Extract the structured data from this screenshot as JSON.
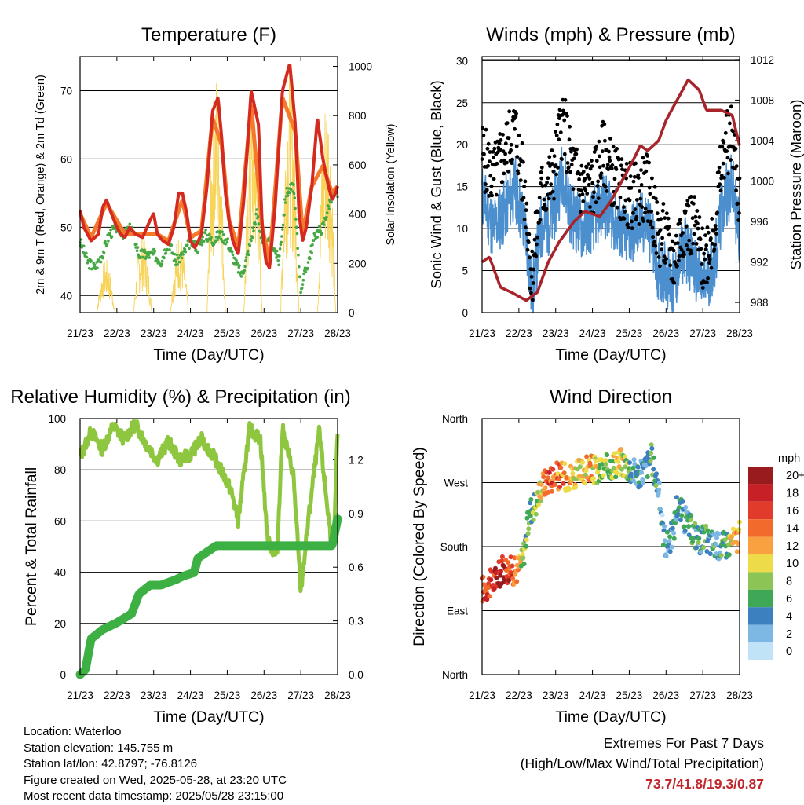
{
  "chart_data": [
    {
      "type": "line",
      "title": "Temperature (F)",
      "xlabel": "Time (Day/UTC)",
      "ylabel": "2m & 9m T (Red, Orange) & 2m Td (Green)",
      "y2label": "Solar Insolation (Yellow)",
      "x_ticks": [
        "21/23",
        "22/23",
        "23/23",
        "24/23",
        "25/23",
        "26/23",
        "27/23",
        "28/23"
      ],
      "ylim": [
        37.5,
        75
      ],
      "y_ticks": [
        40,
        50,
        60,
        70
      ],
      "y2lim": [
        0,
        1040
      ],
      "y2_ticks": [
        0,
        200,
        400,
        600,
        800,
        1000
      ],
      "series": [
        {
          "color": "#d42a20",
          "days": [
            0,
            0.1,
            0.3,
            0.5,
            0.62,
            0.72,
            0.85,
            1.0,
            1.1,
            1.22,
            1.35,
            1.5,
            1.7,
            1.9,
            2.0,
            2.1,
            2.25,
            2.4,
            2.55,
            2.68,
            2.78,
            2.9,
            3.0,
            3.12,
            3.3,
            3.45,
            3.6,
            3.75,
            3.85,
            3.95,
            4.05,
            4.15,
            4.3,
            4.45,
            4.65,
            4.85,
            4.95,
            5.05,
            5.15,
            5.3,
            5.5,
            5.7,
            5.85,
            5.95,
            6.05,
            6.15,
            6.3,
            6.45,
            6.6,
            6.75,
            6.85,
            6.95,
            7.0
          ],
          "values": [
            52.5,
            50,
            48,
            49,
            53,
            54,
            52,
            50,
            49,
            48.5,
            50,
            49,
            48.5,
            51,
            52,
            49,
            48,
            47.5,
            50,
            55,
            55,
            52,
            48,
            47,
            49,
            56,
            67,
            69,
            63,
            55,
            51,
            48,
            46,
            54,
            70,
            65,
            50,
            45,
            44,
            53,
            70,
            74,
            65,
            52,
            48,
            50,
            56,
            66,
            60,
            56,
            54,
            55,
            56
          ]
        },
        {
          "color": "#f4792a",
          "days": [
            0,
            0.3,
            0.72,
            1.22,
            1.7,
            2.1,
            2.4,
            2.78,
            3.0,
            3.3,
            3.6,
            3.85,
            4.05,
            4.3,
            4.65,
            4.95,
            5.15,
            5.5,
            5.85,
            6.05,
            6.3,
            6.6,
            6.85,
            7.0
          ],
          "values": [
            52,
            48.5,
            53.5,
            49,
            49,
            49,
            48,
            54,
            48.5,
            49.5,
            66,
            62,
            51,
            47,
            68,
            50,
            45,
            69,
            64,
            49,
            56,
            59,
            55,
            56
          ]
        },
        {
          "color": "#46a843",
          "days": [
            0,
            0.2,
            0.4,
            0.6,
            0.8,
            1.0,
            1.2,
            1.4,
            1.6,
            1.8,
            2.0,
            2.2,
            2.4,
            2.6,
            2.8,
            3.0,
            3.2,
            3.4,
            3.6,
            3.8,
            4.0,
            4.2,
            4.4,
            4.6,
            4.8,
            5.0,
            5.2,
            5.4,
            5.6,
            5.8,
            6.0,
            6.2,
            6.4,
            6.6,
            6.8,
            7.0
          ],
          "values": [
            48,
            45,
            44,
            46,
            49,
            50,
            49,
            50,
            46,
            46,
            46,
            45,
            48,
            45,
            46,
            48,
            47,
            49,
            48,
            49,
            48,
            45,
            43,
            47,
            52,
            47,
            48,
            45,
            55,
            56,
            41,
            45,
            49,
            50,
            54,
            55
          ]
        }
      ]
    },
    {
      "type": "line",
      "title": "Winds (mph) & Pressure (mb)",
      "xlabel": "Time (Day/UTC)",
      "ylabel": "Sonic Wind & Gust (Blue, Black)",
      "y2label": "Station Pressure (Maroon)",
      "x_ticks": [
        "21/23",
        "22/23",
        "23/23",
        "24/23",
        "25/23",
        "26/23",
        "27/23",
        "28/23"
      ],
      "ylim": [
        0,
        30.5
      ],
      "y_ticks": [
        0,
        5,
        10,
        15,
        20,
        25,
        30
      ],
      "y2lim": [
        987,
        1012.3
      ],
      "y2_ticks": [
        988,
        992,
        996,
        1000,
        1004,
        1008,
        1012
      ],
      "series": [
        {
          "name": "Sonic Wind",
          "color": "#4b8fcf",
          "days": [
            0,
            0.3,
            0.6,
            0.9,
            1.2,
            1.35,
            1.6,
            1.9,
            2.2,
            2.4,
            2.7,
            3.0,
            3.3,
            3.6,
            3.9,
            4.2,
            4.5,
            4.8,
            4.95,
            5.2,
            5.5,
            5.8,
            6.0,
            6.3,
            6.6,
            6.8,
            7.0
          ],
          "values": [
            14,
            10,
            12,
            15,
            9,
            2,
            10,
            11,
            17,
            12,
            10,
            11,
            13,
            11,
            9,
            10,
            11,
            5,
            5,
            3,
            8,
            5,
            3,
            6,
            14,
            15,
            9
          ]
        },
        {
          "name": "Gust",
          "color": "#000000",
          "days": [
            0,
            0.3,
            0.6,
            0.9,
            1.2,
            1.35,
            1.6,
            1.9,
            2.2,
            2.4,
            2.7,
            3.0,
            3.3,
            3.6,
            3.9,
            4.2,
            4.5,
            4.8,
            4.95,
            5.2,
            5.5,
            5.8,
            6.0,
            6.3,
            6.6,
            6.8,
            7.0
          ],
          "values": [
            19,
            16,
            19,
            22,
            13,
            4,
            14,
            16,
            23,
            18,
            15,
            15,
            19,
            16,
            14,
            14,
            15,
            9,
            9,
            6,
            11,
            10,
            6,
            10,
            20,
            21,
            13
          ]
        },
        {
          "name": "Station Pressure",
          "color": "#a6242a",
          "days": [
            0,
            0.2,
            0.5,
            0.8,
            1.2,
            1.5,
            1.8,
            2.1,
            2.5,
            2.8,
            3.2,
            3.5,
            3.8,
            4.1,
            4.3,
            4.5,
            4.8,
            5.0,
            5.3,
            5.6,
            5.9,
            6.1,
            6.3,
            6.5,
            6.8,
            7.0
          ],
          "values": [
            992,
            992.5,
            989.5,
            989,
            988.2,
            989,
            992,
            994,
            996,
            997,
            996.5,
            998,
            1000,
            1002,
            1003.5,
            1003,
            1004,
            1006,
            1008,
            1010,
            1009,
            1007,
            1007,
            1007,
            1006.5,
            1003.5
          ]
        }
      ]
    },
    {
      "type": "line",
      "title": "Relative Humidity (%) & Precipitation (in)",
      "xlabel": "Time (Day/UTC)",
      "ylabel": "Percent & Total Rainfall",
      "x_ticks": [
        "21/23",
        "22/23",
        "23/23",
        "24/23",
        "25/23",
        "26/23",
        "27/23",
        "28/23"
      ],
      "ylim": [
        0,
        100
      ],
      "y_ticks": [
        0,
        20,
        40,
        60,
        80,
        100
      ],
      "y2lim": [
        0,
        1.43
      ],
      "y2_ticks": [
        "0.0",
        "0.3",
        "0.6",
        "0.9",
        "1.2"
      ],
      "series": [
        {
          "name": "Relative Humidity",
          "color": "#8ec63f",
          "days": [
            0,
            0.3,
            0.6,
            0.9,
            1.2,
            1.5,
            1.8,
            2.1,
            2.4,
            2.7,
            3.0,
            3.3,
            3.6,
            3.9,
            4.1,
            4.3,
            4.6,
            4.9,
            5.1,
            5.35,
            5.5,
            5.8,
            6.0,
            6.2,
            6.5,
            6.8,
            6.9,
            7.0
          ],
          "values": [
            85,
            95,
            88,
            97,
            92,
            98,
            90,
            84,
            91,
            84,
            86,
            92,
            86,
            78,
            72,
            60,
            96,
            92,
            52,
            46,
            96,
            78,
            32,
            60,
            95,
            55,
            50,
            95
          ]
        },
        {
          "name": "Total Rainfall",
          "color": "#3cb043",
          "days": [
            0,
            0.15,
            0.3,
            0.6,
            1.0,
            1.4,
            1.6,
            1.9,
            2.2,
            2.6,
            2.8,
            3.1,
            3.2,
            3.7,
            4.0,
            5.0,
            6.0,
            6.85,
            7.0
          ],
          "values": [
            0.0,
            0.03,
            0.2,
            0.25,
            0.29,
            0.34,
            0.45,
            0.5,
            0.5,
            0.53,
            0.55,
            0.57,
            0.65,
            0.72,
            0.72,
            0.72,
            0.72,
            0.72,
            0.87
          ]
        }
      ]
    },
    {
      "type": "scatter",
      "title": "Wind Direction",
      "xlabel": "Time (Day/UTC)",
      "ylabel": "Direction (Colored By Speed)",
      "x_ticks": [
        "21/23",
        "22/23",
        "23/23",
        "24/23",
        "25/23",
        "26/23",
        "27/23",
        "28/23"
      ],
      "y_ticks": [
        "North",
        "West",
        "South",
        "East",
        "North"
      ],
      "ylim": [
        0,
        360
      ],
      "colorbar": {
        "title": "mph",
        "labels": [
          "20+",
          "18",
          "16",
          "14",
          "12",
          "10",
          "8",
          "6",
          "4",
          "2",
          "0"
        ],
        "colors": [
          "#991b1e",
          "#c72027",
          "#e03b2b",
          "#f26a2c",
          "#f9a041",
          "#eedb48",
          "#8dc456",
          "#3fa857",
          "#3d80c0",
          "#7db8e5",
          "#c0e3f7"
        ]
      },
      "series": [
        {
          "name": "Direction",
          "days": [
            0,
            0.3,
            0.6,
            0.9,
            1.1,
            1.3,
            1.5,
            1.6,
            1.8,
            2.0,
            2.3,
            2.6,
            2.9,
            3.2,
            3.5,
            3.8,
            4.0,
            4.3,
            4.6,
            4.8,
            4.9,
            5.0,
            5.2,
            5.3,
            5.6,
            5.9,
            6.1,
            6.4,
            6.7,
            6.9,
            7.0
          ],
          "values": [
            120,
            130,
            150,
            145,
            160,
            230,
            245,
            265,
            275,
            280,
            278,
            282,
            290,
            285,
            295,
            300,
            290,
            280,
            305,
            260,
            210,
            180,
            200,
            240,
            210,
            190,
            190,
            180,
            185,
            190,
            195
          ],
          "speeds": [
            15,
            17,
            18,
            14,
            8,
            6,
            8,
            10,
            16,
            14,
            12,
            10,
            12,
            8,
            9,
            10,
            6,
            3,
            6,
            4,
            3,
            3,
            5,
            3,
            4,
            5,
            6,
            4,
            8,
            12,
            9
          ]
        }
      ]
    }
  ],
  "info": {
    "location": "Location: Waterloo",
    "elevation": "Station elevation: 145.755 m",
    "latlon": "Station lat/lon: 42.8797; -76.8126",
    "created": "Figure created on Wed, 2025-05-28, at 23:20 UTC",
    "recent": "Most recent data timestamp: 2025/05/28 23:15:00"
  },
  "extremes": {
    "title": "Extremes For Past 7 Days",
    "subtitle": "(High/Low/Max Wind/Total Precipitation)",
    "values": "73.7/41.8/19.3/0.87"
  }
}
